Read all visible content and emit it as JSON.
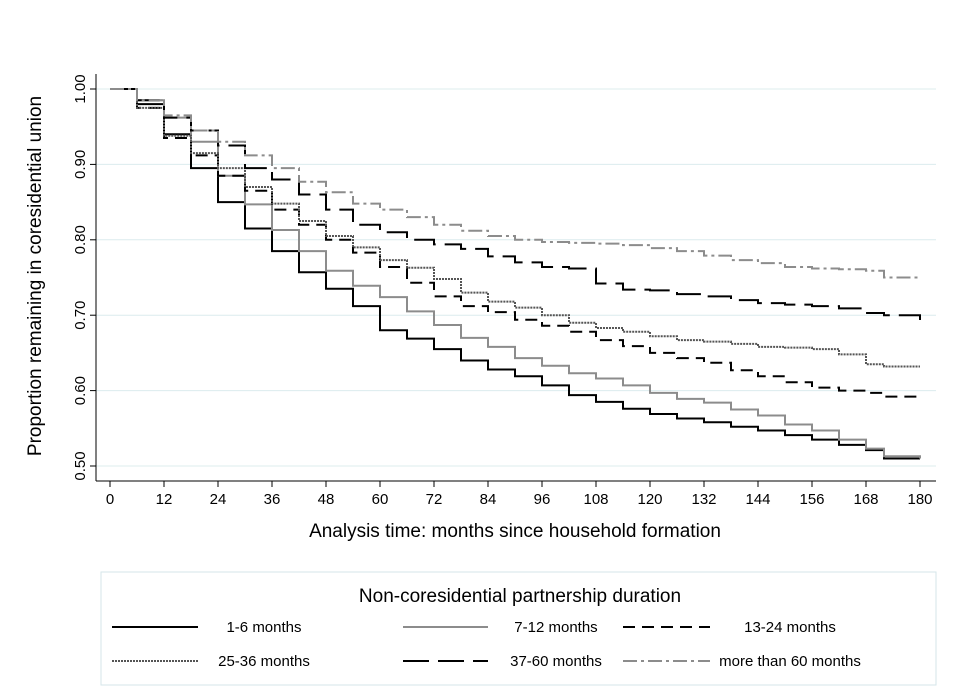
{
  "chart_data": {
    "type": "line",
    "title": "",
    "xlabel": "Analysis time: months since household formation",
    "ylabel": "Proportion remaining in coresidential union",
    "xlim": [
      0,
      180
    ],
    "ylim": [
      0.5,
      1.0
    ],
    "x_ticks": [
      0,
      12,
      24,
      36,
      48,
      60,
      72,
      84,
      96,
      108,
      120,
      132,
      144,
      156,
      168,
      180
    ],
    "x_tick_labels": [
      "0",
      "12",
      "24",
      "36",
      "48",
      "60",
      "72",
      "84",
      "96",
      "108",
      "120",
      "132",
      "144",
      "156",
      "168",
      "180"
    ],
    "y_ticks": [
      0.5,
      0.6,
      0.7,
      0.8,
      0.9,
      1.0
    ],
    "y_tick_labels": [
      "0.50",
      "0.60",
      "0.70",
      "0.80",
      "0.90",
      "1.00"
    ],
    "grid": "horizontal",
    "legend_title": "Non-coresidential partnership duration",
    "legend_position": "bottom",
    "series": [
      {
        "name": "1-6 months",
        "color": "#000000",
        "dash": "none",
        "x": [
          0,
          6,
          12,
          18,
          24,
          30,
          36,
          42,
          48,
          54,
          60,
          66,
          72,
          78,
          84,
          90,
          96,
          102,
          108,
          114,
          120,
          126,
          132,
          138,
          144,
          150,
          156,
          162,
          168,
          172,
          180
        ],
        "y": [
          1.0,
          0.98,
          0.94,
          0.895,
          0.85,
          0.815,
          0.785,
          0.757,
          0.735,
          0.712,
          0.68,
          0.669,
          0.655,
          0.64,
          0.628,
          0.619,
          0.607,
          0.594,
          0.585,
          0.576,
          0.569,
          0.563,
          0.558,
          0.552,
          0.547,
          0.541,
          0.535,
          0.528,
          0.521,
          0.51,
          0.51
        ]
      },
      {
        "name": "7-12 months",
        "color": "#8c8c8c",
        "dash": "none",
        "x": [
          0,
          6,
          12,
          18,
          24,
          30,
          36,
          42,
          48,
          54,
          60,
          66,
          72,
          78,
          84,
          90,
          96,
          102,
          108,
          114,
          120,
          126,
          132,
          138,
          144,
          150,
          156,
          162,
          168,
          172,
          180
        ],
        "y": [
          1.0,
          0.985,
          0.962,
          0.93,
          0.885,
          0.847,
          0.813,
          0.785,
          0.759,
          0.739,
          0.724,
          0.705,
          0.687,
          0.67,
          0.658,
          0.643,
          0.633,
          0.623,
          0.616,
          0.607,
          0.597,
          0.589,
          0.584,
          0.575,
          0.567,
          0.555,
          0.547,
          0.535,
          0.523,
          0.513,
          0.51
        ]
      },
      {
        "name": "13-24 months",
        "color": "#000000",
        "dash": "12,7",
        "x": [
          0,
          6,
          12,
          18,
          24,
          30,
          36,
          42,
          48,
          54,
          60,
          66,
          72,
          78,
          84,
          90,
          96,
          102,
          108,
          114,
          120,
          126,
          132,
          138,
          144,
          150,
          156,
          162,
          168,
          172,
          180
        ],
        "y": [
          1.0,
          0.975,
          0.935,
          0.912,
          0.885,
          0.865,
          0.84,
          0.82,
          0.8,
          0.783,
          0.764,
          0.743,
          0.725,
          0.712,
          0.704,
          0.694,
          0.686,
          0.678,
          0.667,
          0.659,
          0.65,
          0.643,
          0.637,
          0.627,
          0.619,
          0.611,
          0.604,
          0.6,
          0.597,
          0.592,
          0.59
        ]
      },
      {
        "name": "25-36 months",
        "color": "#555555",
        "dash": "2,1",
        "x": [
          0,
          6,
          12,
          18,
          24,
          30,
          36,
          42,
          48,
          54,
          60,
          66,
          72,
          78,
          84,
          90,
          96,
          102,
          108,
          114,
          120,
          126,
          132,
          138,
          144,
          150,
          156,
          162,
          168,
          172,
          180
        ],
        "y": [
          1.0,
          0.975,
          0.938,
          0.915,
          0.895,
          0.87,
          0.848,
          0.825,
          0.805,
          0.79,
          0.773,
          0.763,
          0.748,
          0.73,
          0.718,
          0.71,
          0.7,
          0.69,
          0.683,
          0.678,
          0.672,
          0.667,
          0.665,
          0.662,
          0.658,
          0.657,
          0.655,
          0.648,
          0.635,
          0.632,
          0.632
        ]
      },
      {
        "name": "37-60 months",
        "color": "#000000",
        "dash": "26,9",
        "x": [
          0,
          6,
          12,
          18,
          24,
          30,
          36,
          42,
          48,
          54,
          60,
          66,
          72,
          78,
          84,
          90,
          96,
          102,
          108,
          114,
          120,
          126,
          132,
          138,
          144,
          150,
          156,
          162,
          168,
          172,
          180
        ],
        "y": [
          1.0,
          0.985,
          0.962,
          0.945,
          0.925,
          0.895,
          0.88,
          0.86,
          0.84,
          0.82,
          0.81,
          0.8,
          0.794,
          0.788,
          0.778,
          0.77,
          0.764,
          0.762,
          0.742,
          0.734,
          0.733,
          0.728,
          0.725,
          0.72,
          0.716,
          0.714,
          0.712,
          0.709,
          0.703,
          0.7,
          0.69
        ]
      },
      {
        "name": "more than 60 months",
        "color": "#8c8c8c",
        "dash": "14,4,3,4",
        "x": [
          0,
          6,
          12,
          18,
          24,
          30,
          36,
          42,
          48,
          54,
          60,
          66,
          72,
          78,
          84,
          90,
          96,
          102,
          108,
          114,
          120,
          126,
          132,
          138,
          144,
          150,
          156,
          162,
          168,
          172,
          180
        ],
        "y": [
          1.0,
          0.985,
          0.965,
          0.945,
          0.93,
          0.912,
          0.895,
          0.877,
          0.863,
          0.848,
          0.84,
          0.83,
          0.82,
          0.812,
          0.805,
          0.8,
          0.797,
          0.796,
          0.795,
          0.793,
          0.789,
          0.785,
          0.779,
          0.773,
          0.769,
          0.764,
          0.762,
          0.761,
          0.759,
          0.75,
          0.75
        ]
      }
    ]
  }
}
